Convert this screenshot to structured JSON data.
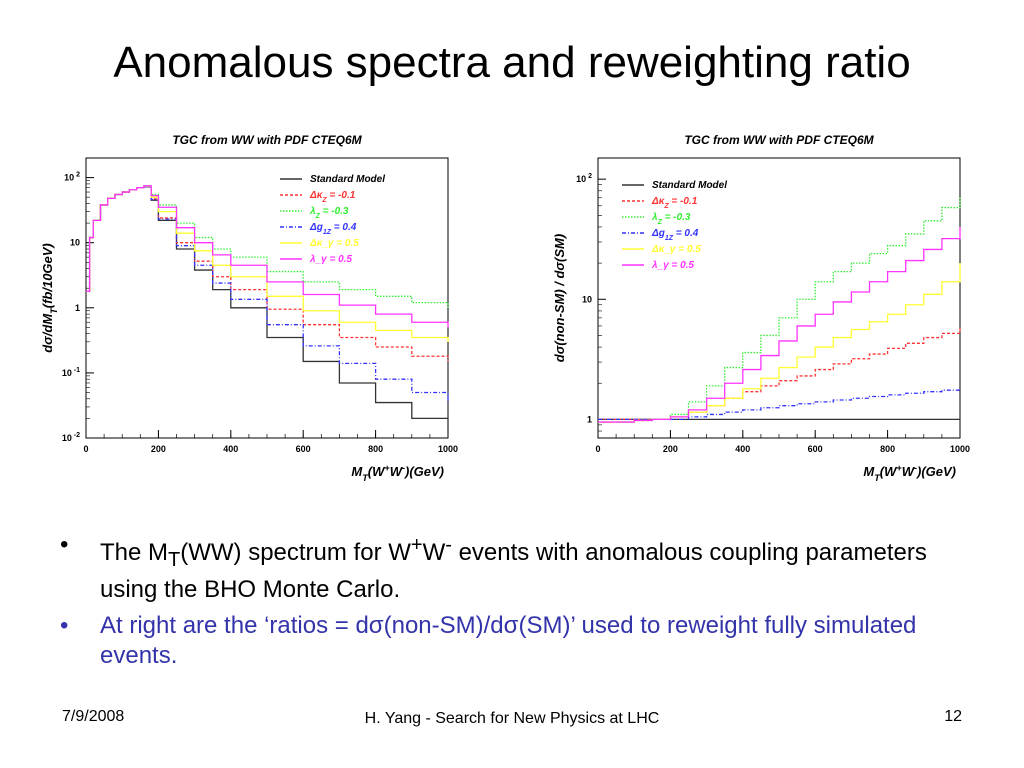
{
  "slide": {
    "title": "Anomalous spectra and reweighting ratio",
    "bullet1": {
      "p1": "The M",
      "sub1": "T",
      "p2": "(WW) spectrum for W",
      "sup1": "+",
      "p3": "W",
      "sup2": "-",
      "p4": " events with anomalous coupling parameters using the BHO Monte Carlo."
    },
    "bullet2": "At right are the ‘ratios = dσ(non-SM)/dσ(SM)’ used to reweight fully simulated events.",
    "footer": {
      "date": "7/9/2008",
      "center": "H. Yang - Search for New Physics at LHC",
      "page": "12"
    }
  },
  "chart_data": [
    {
      "type": "line",
      "title": "TGC from WW with PDF CTEQ6M",
      "ylabel": "dσ/dM_T(fb/10GeV)",
      "xlabel": "M_T(W+W-)(GeV)",
      "xlim": [
        0,
        1000
      ],
      "ylim": [
        0.01,
        200
      ],
      "yscale": "log",
      "xticks": [
        "0",
        "200",
        "400",
        "600",
        "800",
        "1000"
      ],
      "yticks": [
        {
          "v": 100,
          "base": "10",
          "exp": "2"
        },
        {
          "v": 10,
          "base": "10",
          "exp": ""
        },
        {
          "v": 1,
          "base": "1",
          "exp": ""
        },
        {
          "v": 0.1,
          "base": "10",
          "exp": "-1"
        },
        {
          "v": 0.01,
          "base": "10",
          "exp": "-2"
        }
      ],
      "legend_position": "top-right",
      "x": [
        0,
        10,
        20,
        40,
        60,
        80,
        100,
        120,
        140,
        160,
        180,
        200,
        250,
        300,
        350,
        400,
        500,
        600,
        700,
        800,
        900,
        1000
      ],
      "series": [
        {
          "name": "Standard Model",
          "color": "#333333",
          "values": [
            1.8,
            12,
            22,
            38,
            48,
            55,
            60,
            65,
            70,
            72,
            45,
            22,
            8,
            3.8,
            1.9,
            1.0,
            0.35,
            0.15,
            0.07,
            0.035,
            0.02,
            0.012
          ]
        },
        {
          "name": "Δκ_Z = -0.1",
          "color": "#ff3333",
          "values": [
            1.8,
            12,
            22,
            38,
            48,
            55,
            60,
            65,
            70,
            73,
            47,
            24,
            10,
            5.2,
            3.0,
            1.9,
            0.95,
            0.55,
            0.35,
            0.25,
            0.18,
            0.15
          ]
        },
        {
          "name": "λ_Z = -0.3",
          "color": "#33ee33",
          "values": [
            1.8,
            12,
            22,
            38,
            48,
            55,
            60,
            65,
            70,
            75,
            55,
            38,
            20,
            12,
            8,
            6,
            3.6,
            2.5,
            1.9,
            1.5,
            1.2,
            1.0
          ]
        },
        {
          "name": "Δg_1Z = 0.4",
          "color": "#3333ff",
          "values": [
            1.8,
            12,
            22,
            38,
            48,
            55,
            60,
            65,
            70,
            72,
            46,
            23,
            9,
            4.5,
            2.4,
            1.35,
            0.55,
            0.26,
            0.14,
            0.08,
            0.05,
            0.035
          ]
        },
        {
          "name": "Δκ_γ = 0.5",
          "color": "#ffff33",
          "values": [
            1.8,
            12,
            22,
            38,
            48,
            55,
            60,
            65,
            70,
            74,
            50,
            30,
            14,
            7.5,
            4.5,
            3.0,
            1.5,
            0.9,
            0.6,
            0.45,
            0.35,
            0.3
          ]
        },
        {
          "name": "λ_γ = 0.5",
          "color": "#ff33ff",
          "values": [
            1.8,
            12,
            22,
            38,
            48,
            55,
            60,
            65,
            70,
            75,
            53,
            35,
            17,
            10,
            6.5,
            4.5,
            2.5,
            1.6,
            1.1,
            0.8,
            0.6,
            0.5
          ]
        }
      ]
    },
    {
      "type": "line",
      "title": "TGC from WW with PDF CTEQ6M",
      "ylabel": "dσ(non-SM) / dσ(SM)",
      "xlabel": "M_T(W+W-)(GeV)",
      "xlim": [
        0,
        1000
      ],
      "ylim": [
        0.7,
        150
      ],
      "yscale": "log",
      "xticks": [
        "0",
        "200",
        "400",
        "600",
        "800",
        "1000"
      ],
      "yticks": [
        {
          "v": 100,
          "base": "10",
          "exp": "2"
        },
        {
          "v": 10,
          "base": "10",
          "exp": ""
        },
        {
          "v": 1,
          "base": "1",
          "exp": ""
        }
      ],
      "legend_position": "top-left",
      "x": [
        0,
        100,
        150,
        200,
        250,
        300,
        350,
        400,
        450,
        500,
        550,
        600,
        650,
        700,
        750,
        800,
        850,
        900,
        950,
        1000
      ],
      "series": [
        {
          "name": "Standard Model",
          "color": "#333333",
          "values": [
            1,
            1,
            1,
            1,
            1,
            1,
            1,
            1,
            1,
            1,
            1,
            1,
            1,
            1,
            1,
            1,
            1,
            1,
            1,
            1
          ]
        },
        {
          "name": "Δκ_Z = -0.1",
          "color": "#ff3333",
          "values": [
            1.0,
            1.0,
            1.0,
            1.05,
            1.15,
            1.3,
            1.5,
            1.7,
            1.9,
            2.1,
            2.3,
            2.6,
            2.9,
            3.2,
            3.5,
            3.9,
            4.3,
            4.8,
            5.2,
            5.8
          ]
        },
        {
          "name": "λ_Z = -0.3",
          "color": "#33ee33",
          "values": [
            0.95,
            0.98,
            1.0,
            1.1,
            1.4,
            1.9,
            2.7,
            3.6,
            5.0,
            7.0,
            10,
            14,
            17,
            20,
            24,
            28,
            35,
            45,
            58,
            72
          ]
        },
        {
          "name": "Δg_1Z = 0.4",
          "color": "#3333ff",
          "values": [
            1.0,
            1.0,
            1.0,
            1.0,
            1.05,
            1.1,
            1.15,
            1.2,
            1.25,
            1.3,
            1.35,
            1.4,
            1.45,
            1.5,
            1.55,
            1.6,
            1.65,
            1.7,
            1.75,
            1.8
          ]
        },
        {
          "name": "Δκ_γ = 0.5",
          "color": "#ffff33",
          "values": [
            0.95,
            0.98,
            1.0,
            1.05,
            1.15,
            1.3,
            1.5,
            1.8,
            2.2,
            2.7,
            3.3,
            4.0,
            4.8,
            5.6,
            6.5,
            7.5,
            9.0,
            11,
            14,
            20
          ]
        },
        {
          "name": "λ_γ = 0.5",
          "color": "#ff33ff",
          "values": [
            0.95,
            0.98,
            1.0,
            1.05,
            1.2,
            1.5,
            2.0,
            2.6,
            3.4,
            4.5,
            6.0,
            7.5,
            9.5,
            11.5,
            14,
            17,
            21,
            26,
            32,
            40
          ]
        }
      ]
    }
  ]
}
